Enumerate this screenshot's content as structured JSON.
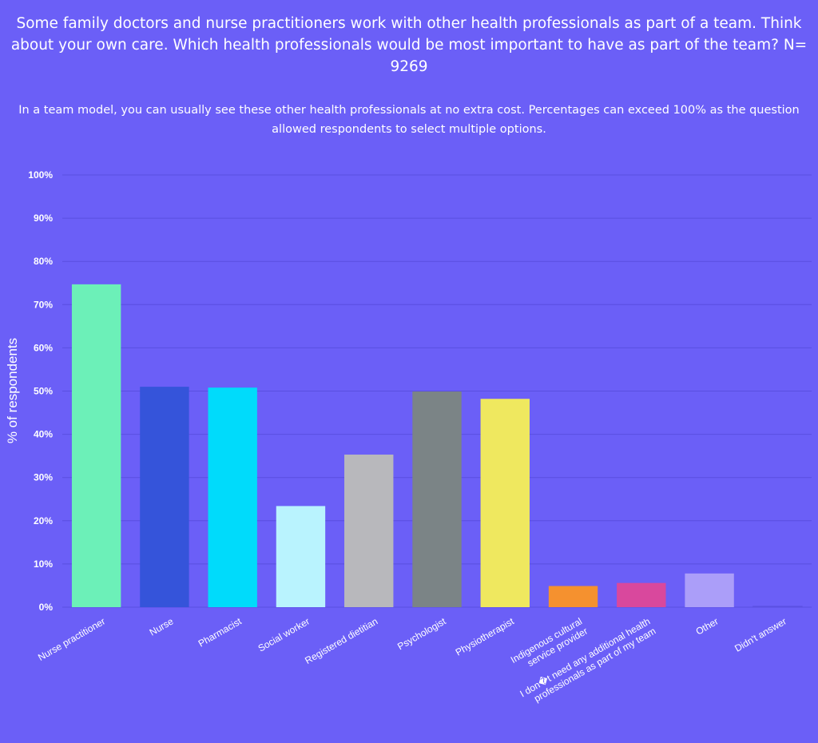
{
  "chart_data": {
    "type": "bar",
    "title": "Some family doctors and nurse practitioners work with other health professionals as part of a team. Think about your own care. Which health professionals would be most important to have as part of the team? N= 9269",
    "subtitle": "In a team model, you can usually see these other health professionals at no extra cost. Percentages can exceed 100% as the question allowed respondents to select multiple options.",
    "ylabel": "% of respondents",
    "xlabel": "",
    "ylim": [
      0,
      100
    ],
    "yticks": [
      "0%",
      "10%",
      "20%",
      "30%",
      "40%",
      "50%",
      "60%",
      "70%",
      "80%",
      "90%",
      "100%"
    ],
    "grid": true,
    "categories": [
      [
        "Nurse practitioner"
      ],
      [
        "Nurse"
      ],
      [
        "Pharmacist"
      ],
      [
        "Social worker"
      ],
      [
        "Registered dietitian"
      ],
      [
        "Psychologist"
      ],
      [
        "Physiotherapist"
      ],
      [
        "Indigenous cultural",
        "service provider"
      ],
      [
        "I don�t need any additional health",
        "professionals as part of my team"
      ],
      [
        "Other"
      ],
      [
        "Didn't answer"
      ]
    ],
    "values": [
      74.7,
      51.0,
      50.8,
      23.4,
      35.3,
      49.9,
      48.2,
      4.9,
      5.6,
      7.8,
      0.2
    ],
    "colors": [
      "#6cf0b8",
      "#3554da",
      "#00dbfb",
      "#b9f3fe",
      "#b8b8bc",
      "#7b8486",
      "#efe85f",
      "#f5912f",
      "#d9489d",
      "#ab9ef9",
      "#6b5ff7"
    ]
  }
}
